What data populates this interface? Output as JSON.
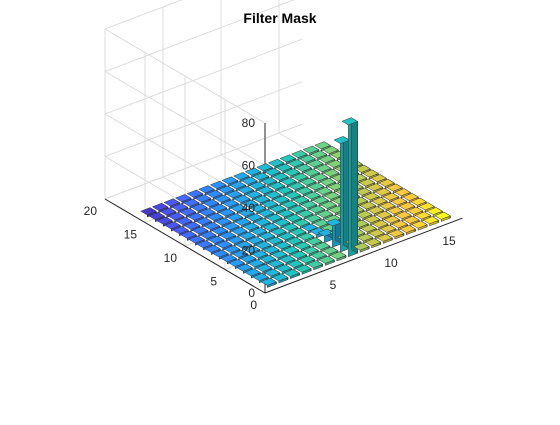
{
  "chart_data": {
    "type": "bar3",
    "title": "Filter Mask",
    "xlabel": "",
    "ylabel": "",
    "zlabel": "",
    "colormap": "parula",
    "x_ticks": [
      5,
      10,
      15
    ],
    "y_ticks": [
      0,
      5,
      10,
      15,
      20
    ],
    "z_ticks": [
      0,
      20,
      40,
      60,
      80
    ],
    "xlim": [
      0,
      17
    ],
    "ylim": [
      0,
      20
    ],
    "zlim": [
      0,
      80
    ],
    "grid": true,
    "grid_size": [
      16,
      16
    ],
    "base_value": 1,
    "highlighted_column": 8,
    "highlighted_bars": [
      {
        "row": 1,
        "value": 62
      },
      {
        "row": 2,
        "value": 51
      },
      {
        "row": 3,
        "value": 10
      },
      {
        "row": 4,
        "value": 3
      },
      {
        "row": 5,
        "value": 1.5
      },
      {
        "row": 6,
        "value": 1
      }
    ]
  }
}
